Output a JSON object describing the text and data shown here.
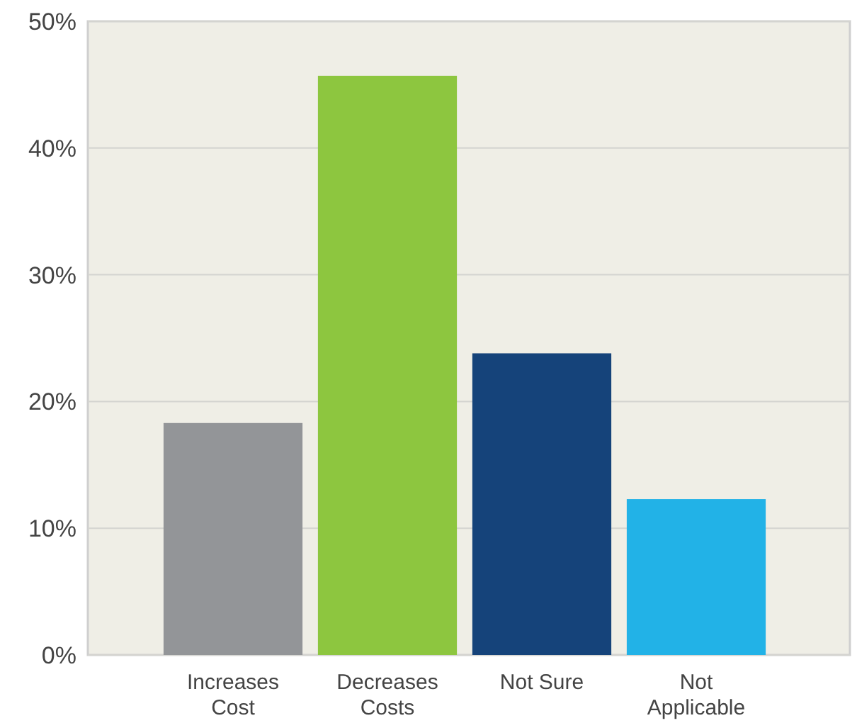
{
  "chart_data": {
    "type": "bar",
    "categories": [
      "Increases\nCost",
      "Decreases\nCosts",
      "Not Sure",
      "Not\nApplicable"
    ],
    "values": [
      18.3,
      45.7,
      23.8,
      12.3
    ],
    "colors": [
      "#939598",
      "#8dc63f",
      "#15437a",
      "#22b2e7"
    ],
    "ylim": [
      0,
      50
    ],
    "yticks": [
      {
        "value": 0,
        "label": "0%"
      },
      {
        "value": 10,
        "label": "10%"
      },
      {
        "value": 20,
        "label": "20%"
      },
      {
        "value": 30,
        "label": "30%"
      },
      {
        "value": 40,
        "label": "40%"
      },
      {
        "value": 50,
        "label": "50%"
      }
    ],
    "grid": "y"
  }
}
